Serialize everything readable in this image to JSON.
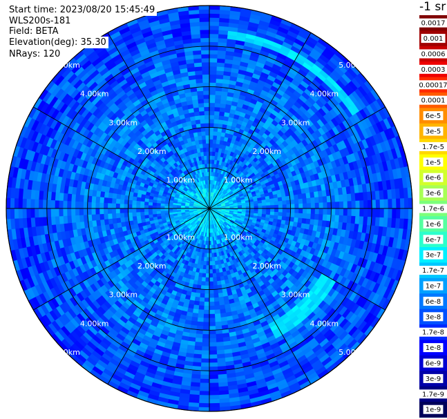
{
  "header": {
    "start_time": "Start time: 2023/08/20 15:45:49",
    "instrument": "WLS200s-181",
    "field": "Field: BETA",
    "elevation": "Elevation(deg): 35.30",
    "nrays": "NRays: 120"
  },
  "colorbar": {
    "unit": "-1 sr",
    "labels": [
      "0.0017",
      "0.001",
      "0.0006",
      "0.0003",
      "0.00017",
      "0.0001",
      "6e-5",
      "3e-5",
      "1.7e-5",
      "1e-5",
      "6e-6",
      "3e-6",
      "1.7e-6",
      "1e-6",
      "6e-7",
      "3e-7",
      "1.7e-7",
      "1e-7",
      "6e-8",
      "3e-8",
      "1.7e-8",
      "1e-8",
      "6e-9",
      "3e-9",
      "1.7e-9",
      "1e-9"
    ],
    "colors": [
      "#800000",
      "#a00000",
      "#c80000",
      "#ee0000",
      "#ff2a00",
      "#ff5a00",
      "#ff8c00",
      "#ffb400",
      "#ffd800",
      "#ffff00",
      "#d2ff2c",
      "#a8ff55",
      "#7cff7a",
      "#55ffa0",
      "#2cffcc",
      "#00f0ff",
      "#00c8ff",
      "#00a0ff",
      "#0078ff",
      "#0050ff",
      "#0028ff",
      "#0000ff",
      "#0000d2",
      "#0000aa",
      "#000082",
      "#00005a"
    ]
  },
  "chart_data": {
    "type": "heatmap",
    "projection": "polar (PPI scan)",
    "range_rings_km": [
      1,
      2,
      3,
      4,
      5
    ],
    "range_labels": [
      "1.00km",
      "2.00km",
      "3.00km",
      "4.00km",
      "5.00km"
    ],
    "max_range_km": 5.0,
    "azimuth_spokes_deg": [
      0,
      30,
      60,
      90,
      120,
      150,
      180,
      210,
      240,
      270,
      300,
      330
    ],
    "n_rays": 120,
    "value_scale": "log",
    "value_range": [
      1e-09,
      0.0017
    ],
    "typical_values": {
      "near_center": 1.7e-07,
      "mid_range": 3e-08,
      "far_range": 1e-08
    },
    "features": [
      {
        "description_azimuth_deg": [
          5,
          55
        ],
        "range_km": 4.3,
        "value": 1e-07
      },
      {
        "description_azimuth_deg": [
          118,
          150
        ],
        "range_km": 3.4,
        "value": 1e-07
      }
    ]
  }
}
